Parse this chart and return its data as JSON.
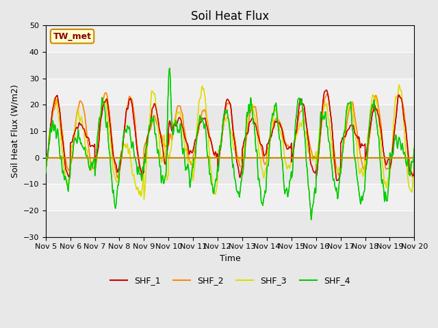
{
  "title": "Soil Heat Flux",
  "ylabel": "Soil Heat Flux (W/m2)",
  "xlabel": "Time",
  "ylim": [
    -30,
    50
  ],
  "xlim": [
    0,
    360
  ],
  "x_tick_labels": [
    "Nov 5",
    "Nov 6",
    "Nov 7",
    "Nov 8",
    "Nov 9",
    "Nov 10",
    "Nov 11",
    "Nov 12",
    "Nov 13",
    "Nov 14",
    "Nov 15",
    "Nov 16",
    "Nov 17",
    "Nov 18",
    "Nov 19",
    "Nov 20"
  ],
  "x_tick_positions": [
    0,
    24,
    48,
    72,
    96,
    120,
    144,
    168,
    192,
    216,
    240,
    264,
    288,
    312,
    336,
    360
  ],
  "colors": {
    "SHF_1": "#cc0000",
    "SHF_2": "#ff8800",
    "SHF_3": "#dddd00",
    "SHF_4": "#00cc00"
  },
  "legend_labels": [
    "SHF_1",
    "SHF_2",
    "SHF_3",
    "SHF_4"
  ],
  "annotation_text": "TW_met",
  "background_color": "#e8e8e8",
  "plot_bg_color": "#e8e8e8",
  "plot_inner_bg": "#f0f0f0",
  "hline_color": "#cc8800",
  "hline_y": 0,
  "title_fontsize": 12,
  "axis_label_fontsize": 9,
  "tick_fontsize": 8,
  "legend_fontsize": 9,
  "linewidth": 1.0
}
